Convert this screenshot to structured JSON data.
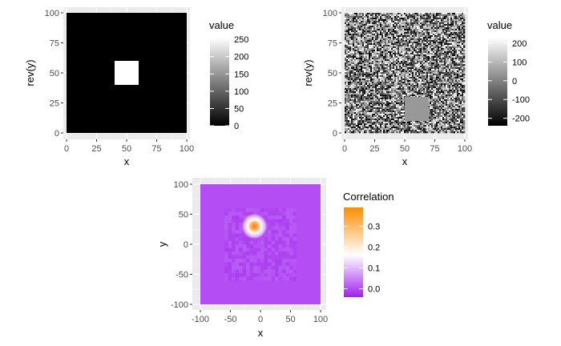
{
  "chart_data": [
    {
      "type": "heatmap",
      "title": "",
      "xlabel": "x",
      "ylabel": "rev(y)",
      "xlim": [
        0,
        100
      ],
      "ylim": [
        0,
        100
      ],
      "x_ticks": [
        "0",
        "25",
        "50",
        "75",
        "100"
      ],
      "y_ticks": [
        "0",
        "25",
        "50",
        "75",
        "100"
      ],
      "background_value": 0,
      "features": [
        {
          "shape": "square",
          "x_range": [
            40,
            60
          ],
          "y_range": [
            40,
            60
          ],
          "value": 255
        }
      ],
      "legend": {
        "title": "value",
        "range": [
          0,
          255
        ],
        "ticks": [
          "0",
          "50",
          "100",
          "150",
          "200",
          "250"
        ],
        "tick_values": [
          0,
          50,
          100,
          150,
          200,
          250
        ],
        "low_color": "#000000",
        "high_color": "#ffffff"
      },
      "grid": true,
      "legend_position": "right"
    },
    {
      "type": "heatmap",
      "title": "",
      "xlabel": "x",
      "ylabel": "rev(y)",
      "xlim": [
        0,
        100
      ],
      "ylim": [
        0,
        100
      ],
      "x_ticks": [
        "0",
        "25",
        "50",
        "75",
        "100"
      ],
      "y_ticks": [
        "0",
        "25",
        "50",
        "75",
        "100"
      ],
      "background": "random noise",
      "features": [
        {
          "shape": "square",
          "x_range": [
            50,
            70
          ],
          "y_range": [
            10,
            30
          ],
          "value": 40
        }
      ],
      "legend": {
        "title": "value",
        "range": [
          -240,
          230
        ],
        "ticks": [
          "-200",
          "-100",
          "0",
          "100",
          "200"
        ],
        "tick_values": [
          -200,
          -100,
          0,
          100,
          200
        ],
        "low_color": "#000000",
        "high_color": "#ffffff"
      },
      "grid": true,
      "legend_position": "right"
    },
    {
      "type": "heatmap",
      "title": "",
      "xlabel": "x",
      "ylabel": "y",
      "xlim": [
        -100,
        100
      ],
      "ylim": [
        -100,
        100
      ],
      "x_ticks": [
        "-100",
        "-50",
        "0",
        "50",
        "100"
      ],
      "y_ticks": [
        "-100",
        "-50",
        "0",
        "50",
        "100"
      ],
      "peak": {
        "x": -10,
        "y": 30,
        "value": 0.38
      },
      "background_value": -0.02,
      "legend": {
        "title": "Correlation",
        "range": [
          -0.04,
          0.39
        ],
        "ticks": [
          "0.0",
          "0.1",
          "0.2",
          "0.3"
        ],
        "tick_values": [
          0.0,
          0.1,
          0.2,
          0.3
        ],
        "colors": [
          "#a020f0",
          "#ffffff",
          "#ff8c00"
        ]
      },
      "grid": true,
      "legend_position": "right"
    }
  ]
}
